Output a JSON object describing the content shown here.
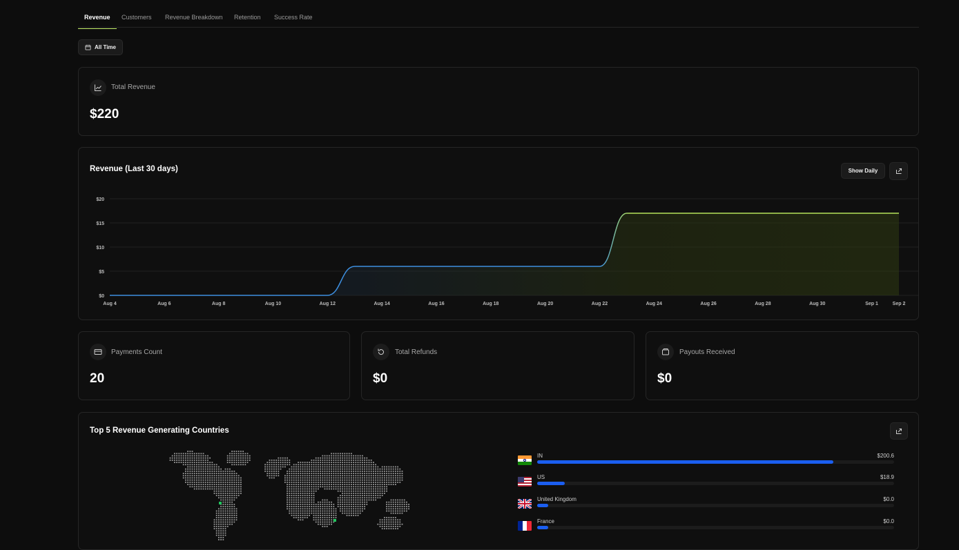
{
  "tabs": [
    {
      "label": "Revenue",
      "active": true
    },
    {
      "label": "Customers"
    },
    {
      "label": "Revenue Breakdown"
    },
    {
      "label": "Retention"
    },
    {
      "label": "Success Rate"
    }
  ],
  "filter": {
    "label": "All Time",
    "icon": "calendar-icon"
  },
  "total_revenue": {
    "label": "Total Revenue",
    "value": "$220",
    "icon": "line-chart-icon"
  },
  "revenue_chart": {
    "title": "Revenue (Last 30 days)",
    "show_daily_label": "Show Daily",
    "share_icon": "share-icon"
  },
  "chart_data": {
    "type": "line",
    "title": "Revenue (Last 30 days)",
    "x": [
      "Aug 4",
      "Aug 5",
      "Aug 6",
      "Aug 7",
      "Aug 8",
      "Aug 9",
      "Aug 10",
      "Aug 11",
      "Aug 12",
      "Aug 13",
      "Aug 14",
      "Aug 15",
      "Aug 16",
      "Aug 17",
      "Aug 18",
      "Aug 19",
      "Aug 20",
      "Aug 21",
      "Aug 22",
      "Aug 23",
      "Aug 24",
      "Aug 25",
      "Aug 26",
      "Aug 27",
      "Aug 28",
      "Aug 29",
      "Aug 30",
      "Aug 31",
      "Sep 1",
      "Sep 2"
    ],
    "x_tick_labels": [
      "Aug 4",
      "Aug 6",
      "Aug 8",
      "Aug 10",
      "Aug 12",
      "Aug 14",
      "Aug 16",
      "Aug 18",
      "Aug 20",
      "Aug 22",
      "Aug 24",
      "Aug 26",
      "Aug 28",
      "Aug 30",
      "Sep 1",
      "Sep 2"
    ],
    "series": [
      {
        "values": [
          0,
          0,
          0,
          0,
          0,
          0,
          0,
          0,
          0,
          6,
          6,
          6,
          6,
          6,
          6,
          6,
          6,
          6,
          6,
          17,
          17,
          17,
          17,
          17,
          17,
          17,
          17,
          17,
          17,
          17
        ]
      }
    ],
    "y_ticks": [
      "$0",
      "$5",
      "$10",
      "$15",
      "$20"
    ],
    "ylim": [
      0,
      20
    ],
    "grid": true,
    "colors": {
      "line_start": "#3d8fe0",
      "line_end": "#b6e35a"
    }
  },
  "stats": [
    {
      "label": "Payments Count",
      "value": "20",
      "icon": "credit-card-icon"
    },
    {
      "label": "Total Refunds",
      "value": "$0",
      "icon": "refund-icon"
    },
    {
      "label": "Payouts Received",
      "value": "$0",
      "icon": "wallet-icon"
    }
  ],
  "countries": {
    "title": "Top 5 Revenue Generating Countries",
    "share_icon": "share-icon",
    "items": [
      {
        "name": "IN",
        "value": "$200.6",
        "fraction": 0.83,
        "flag": "india-flag-icon"
      },
      {
        "name": "US",
        "value": "$18.9",
        "fraction": 0.078,
        "flag": "us-flag-icon"
      },
      {
        "name": "United Kingdom",
        "value": "$0.0",
        "fraction": 0.03,
        "flag": "uk-flag-icon"
      },
      {
        "name": "France",
        "value": "$0.0",
        "fraction": 0.03,
        "flag": "france-flag-icon"
      }
    ],
    "accent": "#1b5ef0",
    "marker_color": "#22c55e"
  }
}
